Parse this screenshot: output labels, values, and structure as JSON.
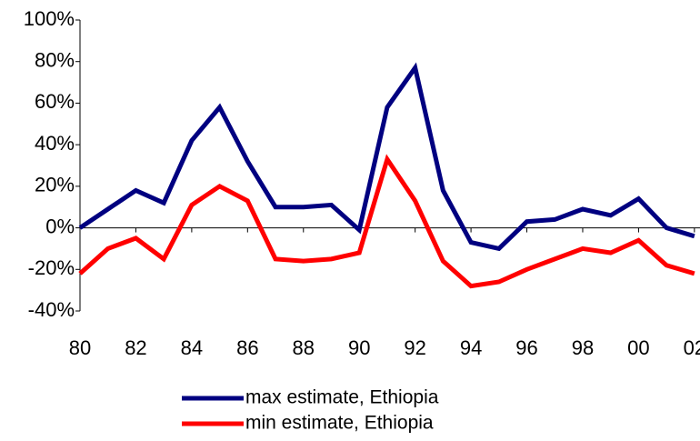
{
  "chart_data": {
    "type": "line",
    "x": [
      1980,
      1981,
      1982,
      1983,
      1984,
      1985,
      1986,
      1987,
      1988,
      1989,
      1990,
      1991,
      1992,
      1993,
      1994,
      1995,
      1996,
      1997,
      1998,
      1999,
      2000,
      2001,
      2002
    ],
    "series": [
      {
        "name": "max estimate, Ethiopia",
        "color": "#000080",
        "values": [
          0,
          9,
          18,
          12,
          42,
          58,
          32,
          10,
          10,
          11,
          -1,
          58,
          77,
          18,
          -7,
          -10,
          3,
          4,
          9,
          6,
          14,
          0,
          -4
        ]
      },
      {
        "name": "min estimate, Ethiopia",
        "color": "#ff0000",
        "values": [
          -22,
          -10,
          -5,
          -15,
          11,
          20,
          13,
          -15,
          -16,
          -15,
          -12,
          33,
          13,
          -16,
          -28,
          -26,
          -20,
          -15,
          -10,
          -12,
          -6,
          -18,
          -22
        ]
      }
    ],
    "xlim": [
      1980,
      2002.2
    ],
    "xticks": [
      {
        "value": 1980,
        "label": "80"
      },
      {
        "value": 1982,
        "label": "82"
      },
      {
        "value": 1984,
        "label": "84"
      },
      {
        "value": 1986,
        "label": "86"
      },
      {
        "value": 1988,
        "label": "88"
      },
      {
        "value": 1990,
        "label": "90"
      },
      {
        "value": 1992,
        "label": "92"
      },
      {
        "value": 1994,
        "label": "94"
      },
      {
        "value": 1996,
        "label": "96"
      },
      {
        "value": 1998,
        "label": "98"
      },
      {
        "value": 2000,
        "label": "00"
      },
      {
        "value": 2002,
        "label": "02"
      }
    ],
    "ylim": [
      -40,
      100
    ],
    "yticks": [
      {
        "value": -40,
        "label": "-40%"
      },
      {
        "value": -20,
        "label": "-20%"
      },
      {
        "value": 0,
        "label": "0%"
      },
      {
        "value": 20,
        "label": "20%"
      },
      {
        "value": 40,
        "label": "40%"
      },
      {
        "value": 60,
        "label": "60%"
      },
      {
        "value": 80,
        "label": "80%"
      },
      {
        "value": 100,
        "label": "100%"
      }
    ],
    "legend": "bottom"
  }
}
